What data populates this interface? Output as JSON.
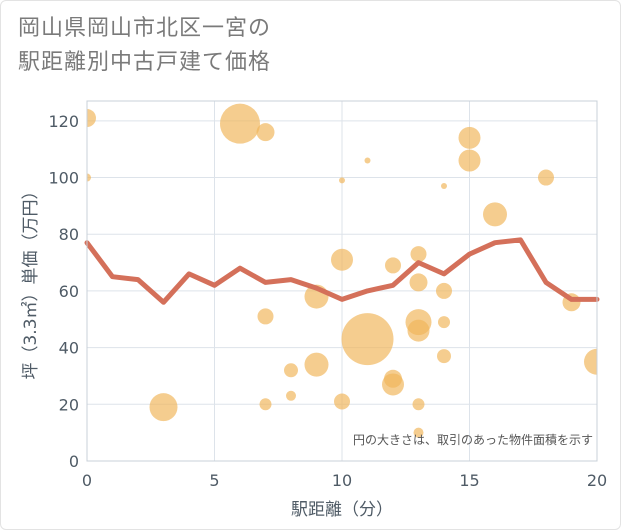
{
  "title": {
    "line1": "岡山県岡山市北区一宮の",
    "line2": "駅距離別中古戸建て価格"
  },
  "note": "円の大きさは、取引のあった物件面積を示す",
  "colors": {
    "bubble": "#f0b65a",
    "line": "#d4705a",
    "grid": "#dde3ea",
    "plot_border": "#c9d0d8"
  },
  "chart_data": {
    "type": "scatter",
    "xlabel": "駅距離（分）",
    "ylabel": "坪（3.3㎡）単価（万円）",
    "xlim": [
      0,
      20
    ],
    "ylim": [
      0,
      127
    ],
    "x_ticks": [
      0,
      5,
      10,
      15,
      20
    ],
    "y_ticks": [
      0,
      20,
      40,
      60,
      80,
      100,
      120
    ],
    "grid": true,
    "bubbles": [
      {
        "x": 0,
        "y": 121,
        "size": 9
      },
      {
        "x": 0,
        "y": 100,
        "size": 4
      },
      {
        "x": 3,
        "y": 19,
        "size": 14
      },
      {
        "x": 6,
        "y": 119,
        "size": 20
      },
      {
        "x": 7,
        "y": 116,
        "size": 9
      },
      {
        "x": 7,
        "y": 51,
        "size": 8
      },
      {
        "x": 7,
        "y": 20,
        "size": 6
      },
      {
        "x": 8,
        "y": 32,
        "size": 7
      },
      {
        "x": 8,
        "y": 23,
        "size": 5
      },
      {
        "x": 9,
        "y": 58,
        "size": 12
      },
      {
        "x": 9,
        "y": 34,
        "size": 12
      },
      {
        "x": 10,
        "y": 99,
        "size": 3
      },
      {
        "x": 10,
        "y": 71,
        "size": 11
      },
      {
        "x": 10,
        "y": 21,
        "size": 8
      },
      {
        "x": 11,
        "y": 106,
        "size": 3
      },
      {
        "x": 11,
        "y": 43,
        "size": 26
      },
      {
        "x": 12,
        "y": 69,
        "size": 8
      },
      {
        "x": 12,
        "y": 29,
        "size": 9
      },
      {
        "x": 12,
        "y": 27,
        "size": 11
      },
      {
        "x": 13,
        "y": 73,
        "size": 8
      },
      {
        "x": 13,
        "y": 63,
        "size": 9
      },
      {
        "x": 13,
        "y": 49,
        "size": 13
      },
      {
        "x": 13,
        "y": 46,
        "size": 11
      },
      {
        "x": 13,
        "y": 20,
        "size": 6
      },
      {
        "x": 13,
        "y": 10,
        "size": 5
      },
      {
        "x": 14,
        "y": 97,
        "size": 3
      },
      {
        "x": 14,
        "y": 60,
        "size": 8
      },
      {
        "x": 14,
        "y": 49,
        "size": 6
      },
      {
        "x": 14,
        "y": 37,
        "size": 7
      },
      {
        "x": 15,
        "y": 114,
        "size": 11
      },
      {
        "x": 15,
        "y": 106,
        "size": 11
      },
      {
        "x": 16,
        "y": 87,
        "size": 12
      },
      {
        "x": 18,
        "y": 100,
        "size": 8
      },
      {
        "x": 19,
        "y": 56,
        "size": 9
      },
      {
        "x": 20,
        "y": 35,
        "size": 13
      }
    ],
    "series": [
      {
        "x": [
          0,
          1,
          2,
          3,
          4,
          5,
          6,
          7,
          8,
          9,
          10,
          11,
          12,
          13,
          14,
          15,
          16,
          17,
          18,
          19,
          20
        ],
        "values": [
          77,
          65,
          64,
          56,
          66,
          62,
          68,
          63,
          64,
          61,
          57,
          60,
          62,
          70,
          66,
          73,
          77,
          78,
          63,
          57,
          57
        ]
      }
    ]
  }
}
